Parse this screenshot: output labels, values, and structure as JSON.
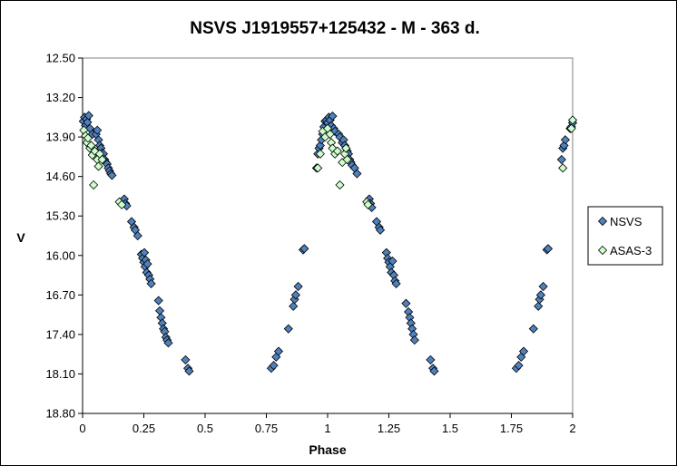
{
  "chart_data": {
    "type": "scatter",
    "title": "NSVS J1919557+125432  - M - 363 d.",
    "xlabel": "Phase",
    "ylabel": "V",
    "xlim": [
      0,
      2
    ],
    "ylim": [
      18.8,
      12.5
    ],
    "y_inverted": true,
    "xticks": [
      0,
      0.25,
      0.5,
      0.75,
      1,
      1.25,
      1.5,
      1.75,
      2
    ],
    "xtick_labels": [
      "0",
      "0.25",
      "0.5",
      "0.75",
      "1",
      "1.25",
      "1.5",
      "1.75",
      "2"
    ],
    "yticks": [
      12.5,
      13.2,
      13.9,
      14.6,
      15.3,
      16.0,
      16.7,
      17.4,
      18.1,
      18.8
    ],
    "ytick_labels": [
      "12.50",
      "13.20",
      "13.90",
      "14.60",
      "15.30",
      "16.00",
      "16.70",
      "17.40",
      "18.10",
      "18.80"
    ],
    "grid": false,
    "legend_position": "right",
    "series": [
      {
        "name": "NSVS",
        "color": "#4F81BD",
        "marker": "diamond",
        "points": [
          [
            0.003,
            13.62
          ],
          [
            0.008,
            13.55
          ],
          [
            0.012,
            13.7
          ],
          [
            0.016,
            13.58
          ],
          [
            0.02,
            13.64
          ],
          [
            0.025,
            13.52
          ],
          [
            0.03,
            13.75
          ],
          [
            0.04,
            13.85
          ],
          [
            0.055,
            13.85
          ],
          [
            0.06,
            13.78
          ],
          [
            0.065,
            13.95
          ],
          [
            0.07,
            14.05
          ],
          [
            0.075,
            14.1
          ],
          [
            0.08,
            14.18
          ],
          [
            0.085,
            14.2
          ],
          [
            0.09,
            14.3
          ],
          [
            0.095,
            14.35
          ],
          [
            0.1,
            14.38
          ],
          [
            0.105,
            14.45
          ],
          [
            0.11,
            14.5
          ],
          [
            0.115,
            14.55
          ],
          [
            0.12,
            14.58
          ],
          [
            0.17,
            15.0
          ],
          [
            0.175,
            15.08
          ],
          [
            0.18,
            15.12
          ],
          [
            0.2,
            15.4
          ],
          [
            0.21,
            15.5
          ],
          [
            0.215,
            15.55
          ],
          [
            0.225,
            15.65
          ],
          [
            0.24,
            15.98
          ],
          [
            0.245,
            16.05
          ],
          [
            0.25,
            16.12
          ],
          [
            0.252,
            15.95
          ],
          [
            0.255,
            16.2
          ],
          [
            0.258,
            16.08
          ],
          [
            0.262,
            16.3
          ],
          [
            0.265,
            16.15
          ],
          [
            0.27,
            16.35
          ],
          [
            0.275,
            16.42
          ],
          [
            0.28,
            16.5
          ],
          [
            0.31,
            16.8
          ],
          [
            0.315,
            16.98
          ],
          [
            0.32,
            17.1
          ],
          [
            0.325,
            17.2
          ],
          [
            0.33,
            17.3
          ],
          [
            0.335,
            17.35
          ],
          [
            0.34,
            17.45
          ],
          [
            0.345,
            17.5
          ],
          [
            0.35,
            17.55
          ],
          [
            0.42,
            17.85
          ],
          [
            0.43,
            18.0
          ],
          [
            0.435,
            18.05
          ],
          [
            0.77,
            18.0
          ],
          [
            0.78,
            17.95
          ],
          [
            0.79,
            17.8
          ],
          [
            0.8,
            17.7
          ],
          [
            0.84,
            17.3
          ],
          [
            0.86,
            16.9
          ],
          [
            0.865,
            16.78
          ],
          [
            0.87,
            16.7
          ],
          [
            0.88,
            16.55
          ],
          [
            0.9,
            15.9
          ],
          [
            0.905,
            15.88
          ],
          [
            0.955,
            14.45
          ],
          [
            0.96,
            14.2
          ],
          [
            0.965,
            14.1
          ],
          [
            0.97,
            14.05
          ],
          [
            0.975,
            13.95
          ],
          [
            0.98,
            13.85
          ],
          [
            0.985,
            13.72
          ],
          [
            0.99,
            13.62
          ],
          [
            0.995,
            13.6
          ],
          [
            1.0,
            13.65
          ],
          [
            1.005,
            13.55
          ],
          [
            1.01,
            13.6
          ],
          [
            1.015,
            13.7
          ],
          [
            1.02,
            13.53
          ],
          [
            1.025,
            13.75
          ],
          [
            1.03,
            13.8
          ],
          [
            1.045,
            13.85
          ],
          [
            1.05,
            13.9
          ],
          [
            1.06,
            14.0
          ],
          [
            1.065,
            13.95
          ],
          [
            1.07,
            14.05
          ],
          [
            1.075,
            14.1
          ],
          [
            1.08,
            14.15
          ],
          [
            1.085,
            14.2
          ],
          [
            1.09,
            14.3
          ],
          [
            1.095,
            14.35
          ],
          [
            1.1,
            14.4
          ],
          [
            1.11,
            14.45
          ],
          [
            1.12,
            14.55
          ],
          [
            1.17,
            15.0
          ],
          [
            1.175,
            15.08
          ],
          [
            1.18,
            15.15
          ],
          [
            1.2,
            15.4
          ],
          [
            1.21,
            15.5
          ],
          [
            1.215,
            15.55
          ],
          [
            1.24,
            15.95
          ],
          [
            1.245,
            16.05
          ],
          [
            1.25,
            16.12
          ],
          [
            1.255,
            16.2
          ],
          [
            1.26,
            16.3
          ],
          [
            1.265,
            16.1
          ],
          [
            1.27,
            16.35
          ],
          [
            1.275,
            16.45
          ],
          [
            1.28,
            16.5
          ],
          [
            1.32,
            16.85
          ],
          [
            1.33,
            17.0
          ],
          [
            1.335,
            17.1
          ],
          [
            1.34,
            17.2
          ],
          [
            1.345,
            17.3
          ],
          [
            1.35,
            17.4
          ],
          [
            1.355,
            17.5
          ],
          [
            1.42,
            17.85
          ],
          [
            1.43,
            18.0
          ],
          [
            1.435,
            18.05
          ],
          [
            1.77,
            18.0
          ],
          [
            1.78,
            17.95
          ],
          [
            1.79,
            17.8
          ],
          [
            1.8,
            17.7
          ],
          [
            1.84,
            17.3
          ],
          [
            1.86,
            16.9
          ],
          [
            1.865,
            16.78
          ],
          [
            1.87,
            16.7
          ],
          [
            1.88,
            16.55
          ],
          [
            1.895,
            15.9
          ],
          [
            1.9,
            15.88
          ],
          [
            1.955,
            14.3
          ],
          [
            1.96,
            14.1
          ],
          [
            1.965,
            14.05
          ],
          [
            1.97,
            13.95
          ],
          [
            1.99,
            13.75
          ],
          [
            1.995,
            13.72
          ],
          [
            2.0,
            13.65
          ]
        ]
      },
      {
        "name": "ASAS-3",
        "color": "#CCFFCC",
        "marker": "diamond",
        "points": [
          [
            0.005,
            13.78
          ],
          [
            0.012,
            13.88
          ],
          [
            0.018,
            14.0
          ],
          [
            0.022,
            13.92
          ],
          [
            0.03,
            14.1
          ],
          [
            0.035,
            14.05
          ],
          [
            0.04,
            14.22
          ],
          [
            0.045,
            14.75
          ],
          [
            0.05,
            14.15
          ],
          [
            0.06,
            14.3
          ],
          [
            0.065,
            14.42
          ],
          [
            0.07,
            14.2
          ],
          [
            0.08,
            14.3
          ],
          [
            0.15,
            15.05
          ],
          [
            0.16,
            15.1
          ],
          [
            0.96,
            14.45
          ],
          [
            0.97,
            14.2
          ],
          [
            0.98,
            13.8
          ],
          [
            0.99,
            13.9
          ],
          [
            1.0,
            13.75
          ],
          [
            1.01,
            13.85
          ],
          [
            1.015,
            14.0
          ],
          [
            1.02,
            14.1
          ],
          [
            1.03,
            14.2
          ],
          [
            1.04,
            14.15
          ],
          [
            1.05,
            14.75
          ],
          [
            1.06,
            14.35
          ],
          [
            1.07,
            14.2
          ],
          [
            1.075,
            14.1
          ],
          [
            1.08,
            14.3
          ],
          [
            1.16,
            15.05
          ],
          [
            1.165,
            15.1
          ],
          [
            1.96,
            14.45
          ],
          [
            1.995,
            13.75
          ],
          [
            2.0,
            13.6
          ]
        ]
      }
    ]
  }
}
